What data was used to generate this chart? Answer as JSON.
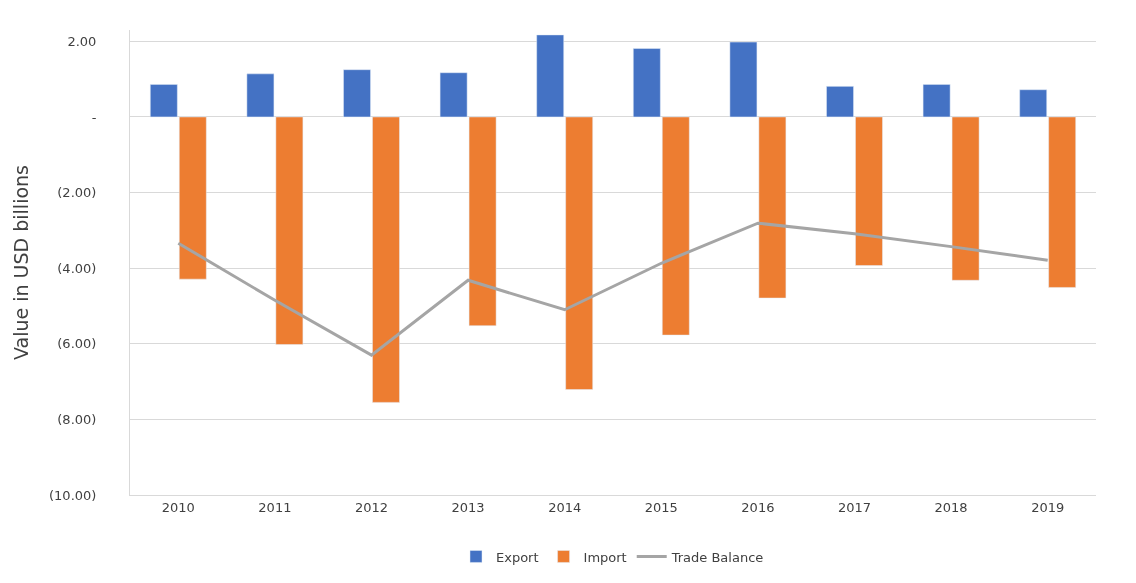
{
  "chart_data": {
    "type": "bar",
    "ylabel": "Value in USD billions",
    "categories": [
      "2010",
      "2011",
      "2012",
      "2013",
      "2014",
      "2015",
      "2016",
      "2017",
      "2018",
      "2019"
    ],
    "series": [
      {
        "name": "Export",
        "color": "#4472c4",
        "values": [
          0.86,
          1.14,
          1.25,
          1.17,
          2.17,
          1.81,
          1.98,
          0.81,
          0.86,
          0.72
        ]
      },
      {
        "name": "Import",
        "color": "#ed7d31",
        "values": [
          -4.29,
          -6.02,
          -7.55,
          -5.52,
          -7.21,
          -5.77,
          -4.79,
          -3.93,
          -4.32,
          -4.51
        ]
      },
      {
        "name": "Trade Balance",
        "type": "line",
        "color": "#a5a5a5",
        "values": [
          -3.34,
          -4.85,
          -6.3,
          -4.32,
          -5.1,
          -3.87,
          -2.81,
          -3.09,
          -3.43,
          -3.79
        ]
      }
    ],
    "ylim": [
      -10,
      2.3
    ],
    "yticks": [
      {
        "value": 2,
        "label": "2.00"
      },
      {
        "value": 0,
        "label": "-"
      },
      {
        "value": -2,
        "label": "(2.00)"
      },
      {
        "value": -4,
        "label": "(4.00)"
      },
      {
        "value": -6,
        "label": "(6.00)"
      },
      {
        "value": -8,
        "label": "(8.00)"
      },
      {
        "value": -10,
        "label": "(10.00)"
      }
    ],
    "grid": "y",
    "legend": "bottom"
  }
}
